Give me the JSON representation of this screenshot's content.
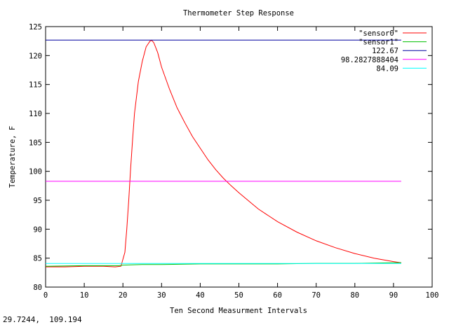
{
  "chart_data": {
    "type": "line",
    "title": "Thermometer Step Response",
    "xlabel": "Ten Second Measurment Intervals",
    "ylabel": "Temperature, F",
    "xlim": [
      0,
      100
    ],
    "ylim": [
      80,
      125
    ],
    "x_ticks": [
      0,
      10,
      20,
      30,
      40,
      50,
      60,
      70,
      80,
      90,
      100
    ],
    "y_ticks": [
      80,
      85,
      90,
      95,
      100,
      105,
      110,
      115,
      120,
      125
    ],
    "grid": false,
    "legend_position": "top-right",
    "series": [
      {
        "name": "\"sensor0\"",
        "color": "#ff0000",
        "x": [
          0,
          5,
          10,
          15,
          18,
          19.5,
          20.5,
          21,
          21.5,
          22,
          22.5,
          23,
          24,
          25,
          26,
          27,
          27.5,
          28,
          29,
          30,
          32,
          34,
          36,
          38,
          40,
          42,
          44,
          46,
          48,
          50,
          55,
          60,
          65,
          70,
          75,
          80,
          85,
          90,
          92
        ],
        "y": [
          83.5,
          83.5,
          83.6,
          83.6,
          83.5,
          83.6,
          86.0,
          90.0,
          95.0,
          100.5,
          105.5,
          110.0,
          115.5,
          119.0,
          121.5,
          122.5,
          122.6,
          122.2,
          120.5,
          118.0,
          114.3,
          111.0,
          108.4,
          106.0,
          104.0,
          102.0,
          100.3,
          98.8,
          97.5,
          96.3,
          93.5,
          91.3,
          89.5,
          88.0,
          86.8,
          85.8,
          85.0,
          84.4,
          84.2
        ]
      },
      {
        "name": "\"sensor1\"",
        "color": "#00c000",
        "x": [
          0,
          10,
          19,
          20,
          25,
          30,
          40,
          50,
          60,
          70,
          80,
          90,
          92
        ],
        "y": [
          83.6,
          83.7,
          83.7,
          83.8,
          83.9,
          83.9,
          84.0,
          84.0,
          84.0,
          84.1,
          84.1,
          84.2,
          84.2
        ]
      },
      {
        "name": "122.67",
        "color": "#0000a0",
        "x": [
          0,
          92
        ],
        "y": [
          122.67,
          122.67
        ]
      },
      {
        "name": "98.2827888404",
        "color": "#ff00ff",
        "x": [
          0,
          92
        ],
        "y": [
          98.2827888404,
          98.2827888404
        ]
      },
      {
        "name": "84.09",
        "color": "#00ffff",
        "x": [
          0,
          92
        ],
        "y": [
          84.09,
          84.09
        ]
      }
    ]
  },
  "status": {
    "coords": "29.7244,  109.194"
  }
}
